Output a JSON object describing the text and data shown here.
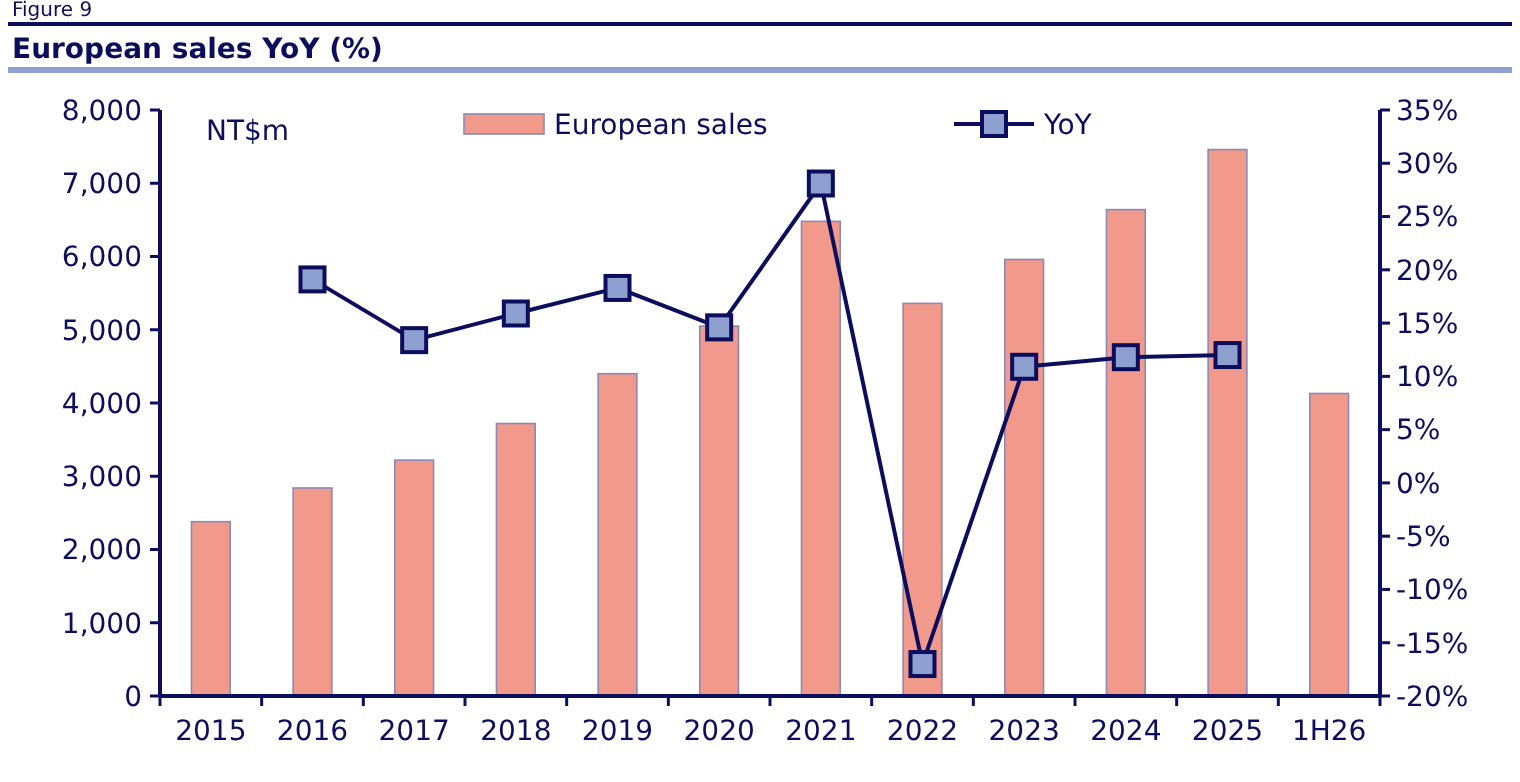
{
  "chart_data": {
    "type": "bar",
    "title": "European sales YoY (%)",
    "annotations": [
      "Figure 9",
      "NT$m"
    ],
    "categories": [
      "2015",
      "2016",
      "2017",
      "2018",
      "2019",
      "2020",
      "2021",
      "2022",
      "2023",
      "2024",
      "2025",
      "1H26"
    ],
    "series": [
      {
        "name": "European sales",
        "color": "#f19a8b",
        "values": [
          2380,
          2840,
          3220,
          3720,
          4400,
          5050,
          6480,
          5360,
          5960,
          6640,
          7460,
          4130
        ]
      },
      {
        "name": "YoY",
        "type": "line",
        "axis": "y2",
        "color": "#0d0d5e",
        "marker": "square",
        "values": [
          null,
          19.1,
          13.4,
          15.9,
          18.3,
          14.6,
          28.1,
          -17,
          10.9,
          11.8,
          12.0,
          null
        ]
      }
    ],
    "ylim": [
      0,
      8000
    ],
    "yticks": [
      {
        "value": 0,
        "label": "0"
      },
      {
        "value": 1000,
        "label": "1,000"
      },
      {
        "value": 2000,
        "label": "2,000"
      },
      {
        "value": 3000,
        "label": "3,000"
      },
      {
        "value": 4000,
        "label": "4,000"
      },
      {
        "value": 5000,
        "label": "5,000"
      },
      {
        "value": 6000,
        "label": "6,000"
      },
      {
        "value": 7000,
        "label": "7,000"
      },
      {
        "value": 8000,
        "label": "8,000"
      }
    ],
    "y2lim": [
      -20,
      35
    ],
    "y2ticks": [
      {
        "value": -20,
        "label": "-20%"
      },
      {
        "value": -15,
        "label": "-15%"
      },
      {
        "value": -10,
        "label": "-10%"
      },
      {
        "value": -5,
        "label": "-5%"
      },
      {
        "value": 0,
        "label": "0%"
      },
      {
        "value": 5,
        "label": "5%"
      },
      {
        "value": 10,
        "label": "10%"
      },
      {
        "value": 15,
        "label": "15%"
      },
      {
        "value": 20,
        "label": "20%"
      },
      {
        "value": 25,
        "label": "25%"
      },
      {
        "value": 30,
        "label": "30%"
      },
      {
        "value": 35,
        "label": "35%"
      }
    ],
    "legend": "top",
    "grid": false
  }
}
